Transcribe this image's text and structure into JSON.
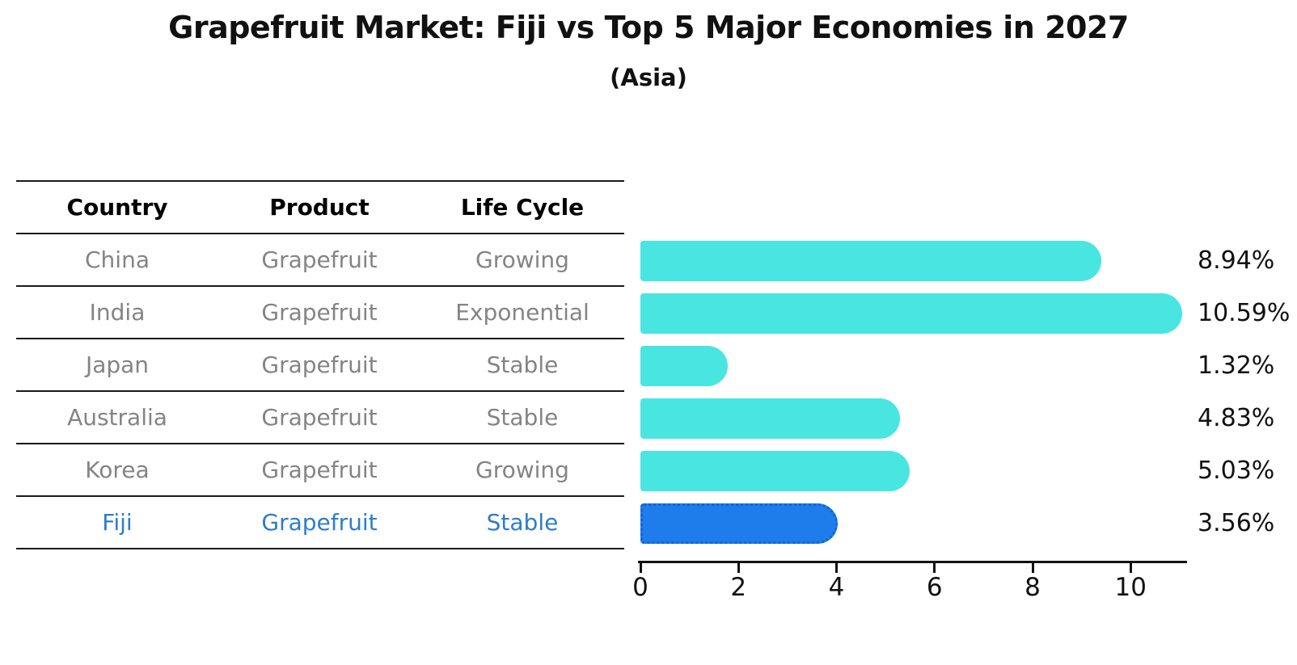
{
  "title": "Grapefruit Market: Fiji vs Top 5 Major Economies in 2027",
  "subtitle": "(Asia)",
  "table": {
    "headers": [
      "Country",
      "Product",
      "Life Cycle"
    ],
    "rows": [
      {
        "country": "China",
        "product": "Grapefruit",
        "life_cycle": "Growing",
        "highlighted": false
      },
      {
        "country": "India",
        "product": "Grapefruit",
        "life_cycle": "Exponential",
        "highlighted": false
      },
      {
        "country": "Japan",
        "product": "Grapefruit",
        "life_cycle": "Stable",
        "highlighted": false
      },
      {
        "country": "Australia",
        "product": "Grapefruit",
        "life_cycle": "Stable",
        "highlighted": false
      },
      {
        "country": "Korea",
        "product": "Grapefruit",
        "life_cycle": "Growing",
        "highlighted": false
      },
      {
        "country": "Fiji",
        "product": "Grapefruit",
        "life_cycle": "Stable",
        "highlighted": true
      }
    ]
  },
  "chart_data": {
    "type": "bar",
    "orientation": "horizontal",
    "categories": [
      "China",
      "India",
      "Japan",
      "Australia",
      "Korea",
      "Fiji"
    ],
    "values": [
      8.94,
      10.59,
      1.32,
      4.83,
      5.03,
      3.56
    ],
    "value_labels": [
      "8.94%",
      "10.59%",
      "1.32%",
      "4.83%",
      "5.03%",
      "3.56%"
    ],
    "x_ticks": [
      0,
      2,
      4,
      6,
      8,
      10
    ],
    "xlim": [
      0,
      11.15
    ],
    "grid": false,
    "legend": "none",
    "bar_color": "#48e5e1",
    "highlight_color": "#1e7ceb",
    "highlight_index": 5,
    "highlight_text_color": "#2e7dc9",
    "xlabel": "",
    "ylabel": ""
  }
}
